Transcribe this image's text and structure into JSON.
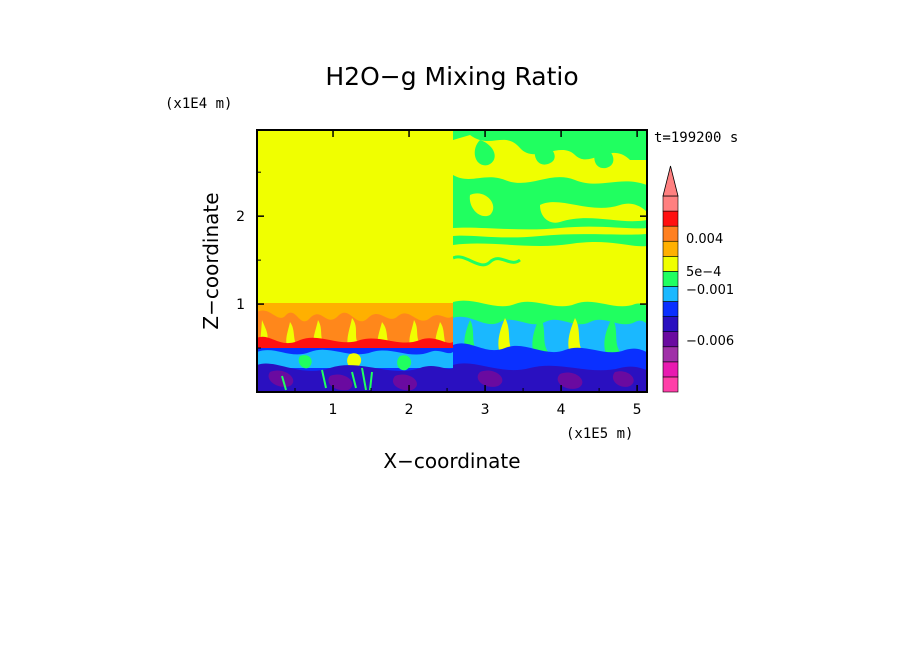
{
  "chart_data": {
    "type": "heatmap",
    "title": "H2O−g Mixing Ratio",
    "xlabel": "X−coordinate",
    "ylabel": "Z−coordinate",
    "x_multiplier": "(x1E5 m)",
    "y_multiplier": "(x1E4 m)",
    "time_label": "t=199200 s",
    "xlim": [
      0,
      5.13
    ],
    "ylim": [
      0,
      2.98
    ],
    "x_ticks": [
      1,
      2,
      3,
      4,
      5
    ],
    "x_tick_labels": [
      "1",
      "2",
      "3",
      "4",
      "5"
    ],
    "y_ticks": [
      1,
      2
    ],
    "y_tick_labels": [
      "1",
      "2"
    ],
    "colorbar": {
      "levels": [
        "0.004",
        "5e−4",
        "−0.001",
        "−0.006"
      ],
      "colors": [
        "#ff3fa8",
        "#e81ab0",
        "#a030a8",
        "#6a0aa0",
        "#2a10c0",
        "#0a30ff",
        "#1ab8ff",
        "#20ff60",
        "#f0ff00",
        "#ffb000",
        "#ff8020",
        "#ff1010",
        "#ff8080"
      ]
    }
  }
}
